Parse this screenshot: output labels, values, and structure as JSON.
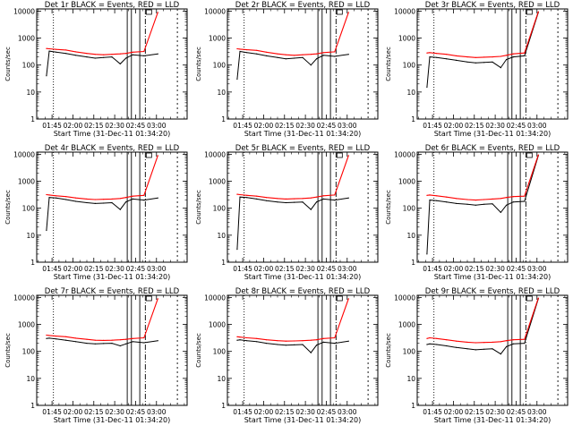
{
  "figure": {
    "x_tick_labels": [
      "01:45",
      "02:00",
      "02:15",
      "02:30",
      "02:45",
      "03:00"
    ],
    "y_tick_labels": [
      "1",
      "10",
      "100",
      "1000",
      "10000"
    ],
    "x_axis_label": "Start Time (31-Dec-11 01:34:20)",
    "y_axis_label": "Counts/sec"
  },
  "colors": {
    "events": "#000000",
    "lld": "#ff0000"
  },
  "chart_data": [
    {
      "type": "line",
      "title": "Det 1r BLACK = Events, RED = LLD",
      "xlabel": "Start Time (31-Dec-11 01:34:20)",
      "ylabel": "Counts/sec",
      "x": [
        101,
        103,
        108,
        115,
        122,
        130,
        136,
        142,
        148,
        154,
        158,
        163,
        171,
        181
      ],
      "series": [
        {
          "name": "Events",
          "values": [
            40,
            330,
            300,
            270,
            230,
            200,
            180,
            190,
            200,
            110,
            180,
            240,
            220,
            260
          ]
        },
        {
          "name": "LLD",
          "values": [
            410,
            400,
            380,
            360,
            310,
            270,
            250,
            240,
            250,
            260,
            270,
            300,
            320,
            9000
          ]
        }
      ],
      "ylim": [
        1,
        12000
      ],
      "yscale": "log",
      "xlim": [
        94,
        202
      ]
    },
    {
      "type": "line",
      "title": "Det 2r BLACK = Events, RED = LLD",
      "xlabel": "Start Time (31-Dec-11 01:34:20)",
      "ylabel": "Counts/sec",
      "x": [
        101,
        103,
        108,
        115,
        122,
        130,
        136,
        142,
        148,
        154,
        158,
        163,
        171,
        181
      ],
      "series": [
        {
          "name": "Events",
          "values": [
            30,
            320,
            290,
            260,
            220,
            190,
            170,
            180,
            190,
            100,
            170,
            230,
            210,
            250
          ]
        },
        {
          "name": "LLD",
          "values": [
            400,
            390,
            370,
            350,
            300,
            260,
            240,
            230,
            240,
            250,
            260,
            290,
            310,
            9000
          ]
        }
      ],
      "ylim": [
        1,
        12000
      ],
      "yscale": "log",
      "xlim": [
        94,
        202
      ]
    },
    {
      "type": "line",
      "title": "Det 3r BLACK = Events, RED = LLD",
      "xlabel": "Start Time (31-Dec-11 01:34:20)",
      "ylabel": "Counts/sec",
      "x": [
        101,
        103,
        108,
        115,
        122,
        130,
        136,
        142,
        148,
        154,
        158,
        163,
        171,
        181
      ],
      "series": [
        {
          "name": "Events",
          "values": [
            15,
            200,
            190,
            170,
            150,
            130,
            120,
            125,
            130,
            80,
            160,
            200,
            220,
            9000
          ]
        },
        {
          "name": "LLD",
          "values": [
            280,
            290,
            270,
            250,
            220,
            200,
            190,
            195,
            200,
            210,
            230,
            260,
            280,
            9500
          ]
        }
      ],
      "ylim": [
        1,
        12000
      ],
      "yscale": "log",
      "xlim": [
        94,
        202
      ]
    },
    {
      "type": "line",
      "title": "Det 4r BLACK = Events, RED = LLD",
      "xlabel": "Start Time (31-Dec-11 01:34:20)",
      "ylabel": "Counts/sec",
      "x": [
        101,
        103,
        108,
        115,
        122,
        130,
        136,
        142,
        148,
        154,
        158,
        163,
        171,
        181
      ],
      "series": [
        {
          "name": "Events",
          "values": [
            15,
            250,
            240,
            210,
            180,
            160,
            150,
            155,
            160,
            90,
            170,
            220,
            200,
            240
          ]
        },
        {
          "name": "LLD",
          "values": [
            320,
            310,
            290,
            270,
            240,
            220,
            210,
            215,
            220,
            230,
            250,
            280,
            300,
            9000
          ]
        }
      ],
      "ylim": [
        1,
        12000
      ],
      "yscale": "log",
      "xlim": [
        94,
        202
      ]
    },
    {
      "type": "line",
      "title": "Det 5r BLACK = Events, RED = LLD",
      "xlabel": "Start Time (31-Dec-11 01:34:20)",
      "ylabel": "Counts/sec",
      "x": [
        101,
        103,
        108,
        115,
        122,
        130,
        136,
        142,
        148,
        154,
        158,
        163,
        171,
        181
      ],
      "series": [
        {
          "name": "Events",
          "values": [
            3,
            260,
            250,
            220,
            190,
            170,
            160,
            165,
            170,
            90,
            170,
            220,
            200,
            240
          ]
        },
        {
          "name": "LLD",
          "values": [
            330,
            320,
            300,
            280,
            250,
            230,
            220,
            225,
            230,
            240,
            260,
            290,
            310,
            9000
          ]
        }
      ],
      "ylim": [
        1,
        12000
      ],
      "yscale": "log",
      "xlim": [
        94,
        202
      ]
    },
    {
      "type": "line",
      "title": "Det 6r BLACK = Events, RED = LLD",
      "xlabel": "Start Time (31-Dec-11 01:34:20)",
      "ylabel": "Counts/sec",
      "x": [
        101,
        103,
        108,
        115,
        122,
        130,
        136,
        142,
        148,
        154,
        158,
        163,
        171,
        181
      ],
      "series": [
        {
          "name": "Events",
          "values": [
            2,
            200,
            190,
            170,
            150,
            140,
            130,
            140,
            145,
            70,
            130,
            170,
            180,
            9000
          ]
        },
        {
          "name": "LLD",
          "values": [
            300,
            310,
            290,
            260,
            230,
            210,
            200,
            210,
            220,
            230,
            250,
            270,
            280,
            9500
          ]
        }
      ],
      "ylim": [
        1,
        12000
      ],
      "yscale": "log",
      "xlim": [
        94,
        202
      ]
    },
    {
      "type": "line",
      "title": "Det 7r BLACK = Events, RED = LLD",
      "xlabel": "Start Time (31-Dec-11 01:34:20)",
      "ylabel": "Counts/sec",
      "x": [
        101,
        103,
        108,
        115,
        122,
        130,
        136,
        142,
        148,
        154,
        158,
        163,
        171,
        181
      ],
      "series": [
        {
          "name": "Events",
          "values": [
            300,
            310,
            290,
            260,
            230,
            200,
            190,
            195,
            200,
            160,
            190,
            230,
            210,
            250
          ]
        },
        {
          "name": "LLD",
          "values": [
            400,
            390,
            370,
            350,
            310,
            280,
            260,
            255,
            260,
            270,
            280,
            300,
            320,
            9000
          ]
        }
      ],
      "ylim": [
        1,
        12000
      ],
      "yscale": "log",
      "xlim": [
        94,
        202
      ]
    },
    {
      "type": "line",
      "title": "Det 8r BLACK = Events, RED = LLD",
      "xlabel": "Start Time (31-Dec-11 01:34:20)",
      "ylabel": "Counts/sec",
      "x": [
        101,
        103,
        108,
        115,
        122,
        130,
        136,
        142,
        148,
        154,
        158,
        163,
        171,
        181
      ],
      "series": [
        {
          "name": "Events",
          "values": [
            260,
            270,
            250,
            230,
            200,
            180,
            170,
            175,
            180,
            90,
            170,
            220,
            200,
            240
          ]
        },
        {
          "name": "LLD",
          "values": [
            350,
            340,
            320,
            300,
            270,
            250,
            240,
            245,
            250,
            260,
            270,
            300,
            320,
            9000
          ]
        }
      ],
      "ylim": [
        1,
        12000
      ],
      "yscale": "log",
      "xlim": [
        94,
        202
      ]
    },
    {
      "type": "line",
      "title": "Det 9r BLACK = Events, RED = LLD",
      "xlabel": "Start Time (31-Dec-11 01:34:20)",
      "ylabel": "Counts/sec",
      "x": [
        101,
        103,
        108,
        115,
        122,
        130,
        136,
        142,
        148,
        154,
        158,
        163,
        171,
        181
      ],
      "series": [
        {
          "name": "Events",
          "values": [
            180,
            190,
            180,
            160,
            140,
            125,
            115,
            120,
            125,
            80,
            150,
            190,
            200,
            9000
          ]
        },
        {
          "name": "LLD",
          "values": [
            300,
            320,
            300,
            270,
            240,
            220,
            210,
            215,
            220,
            230,
            250,
            270,
            280,
            9500
          ]
        }
      ],
      "ylim": [
        1,
        12000
      ],
      "yscale": "log",
      "xlim": [
        94,
        202
      ]
    }
  ]
}
